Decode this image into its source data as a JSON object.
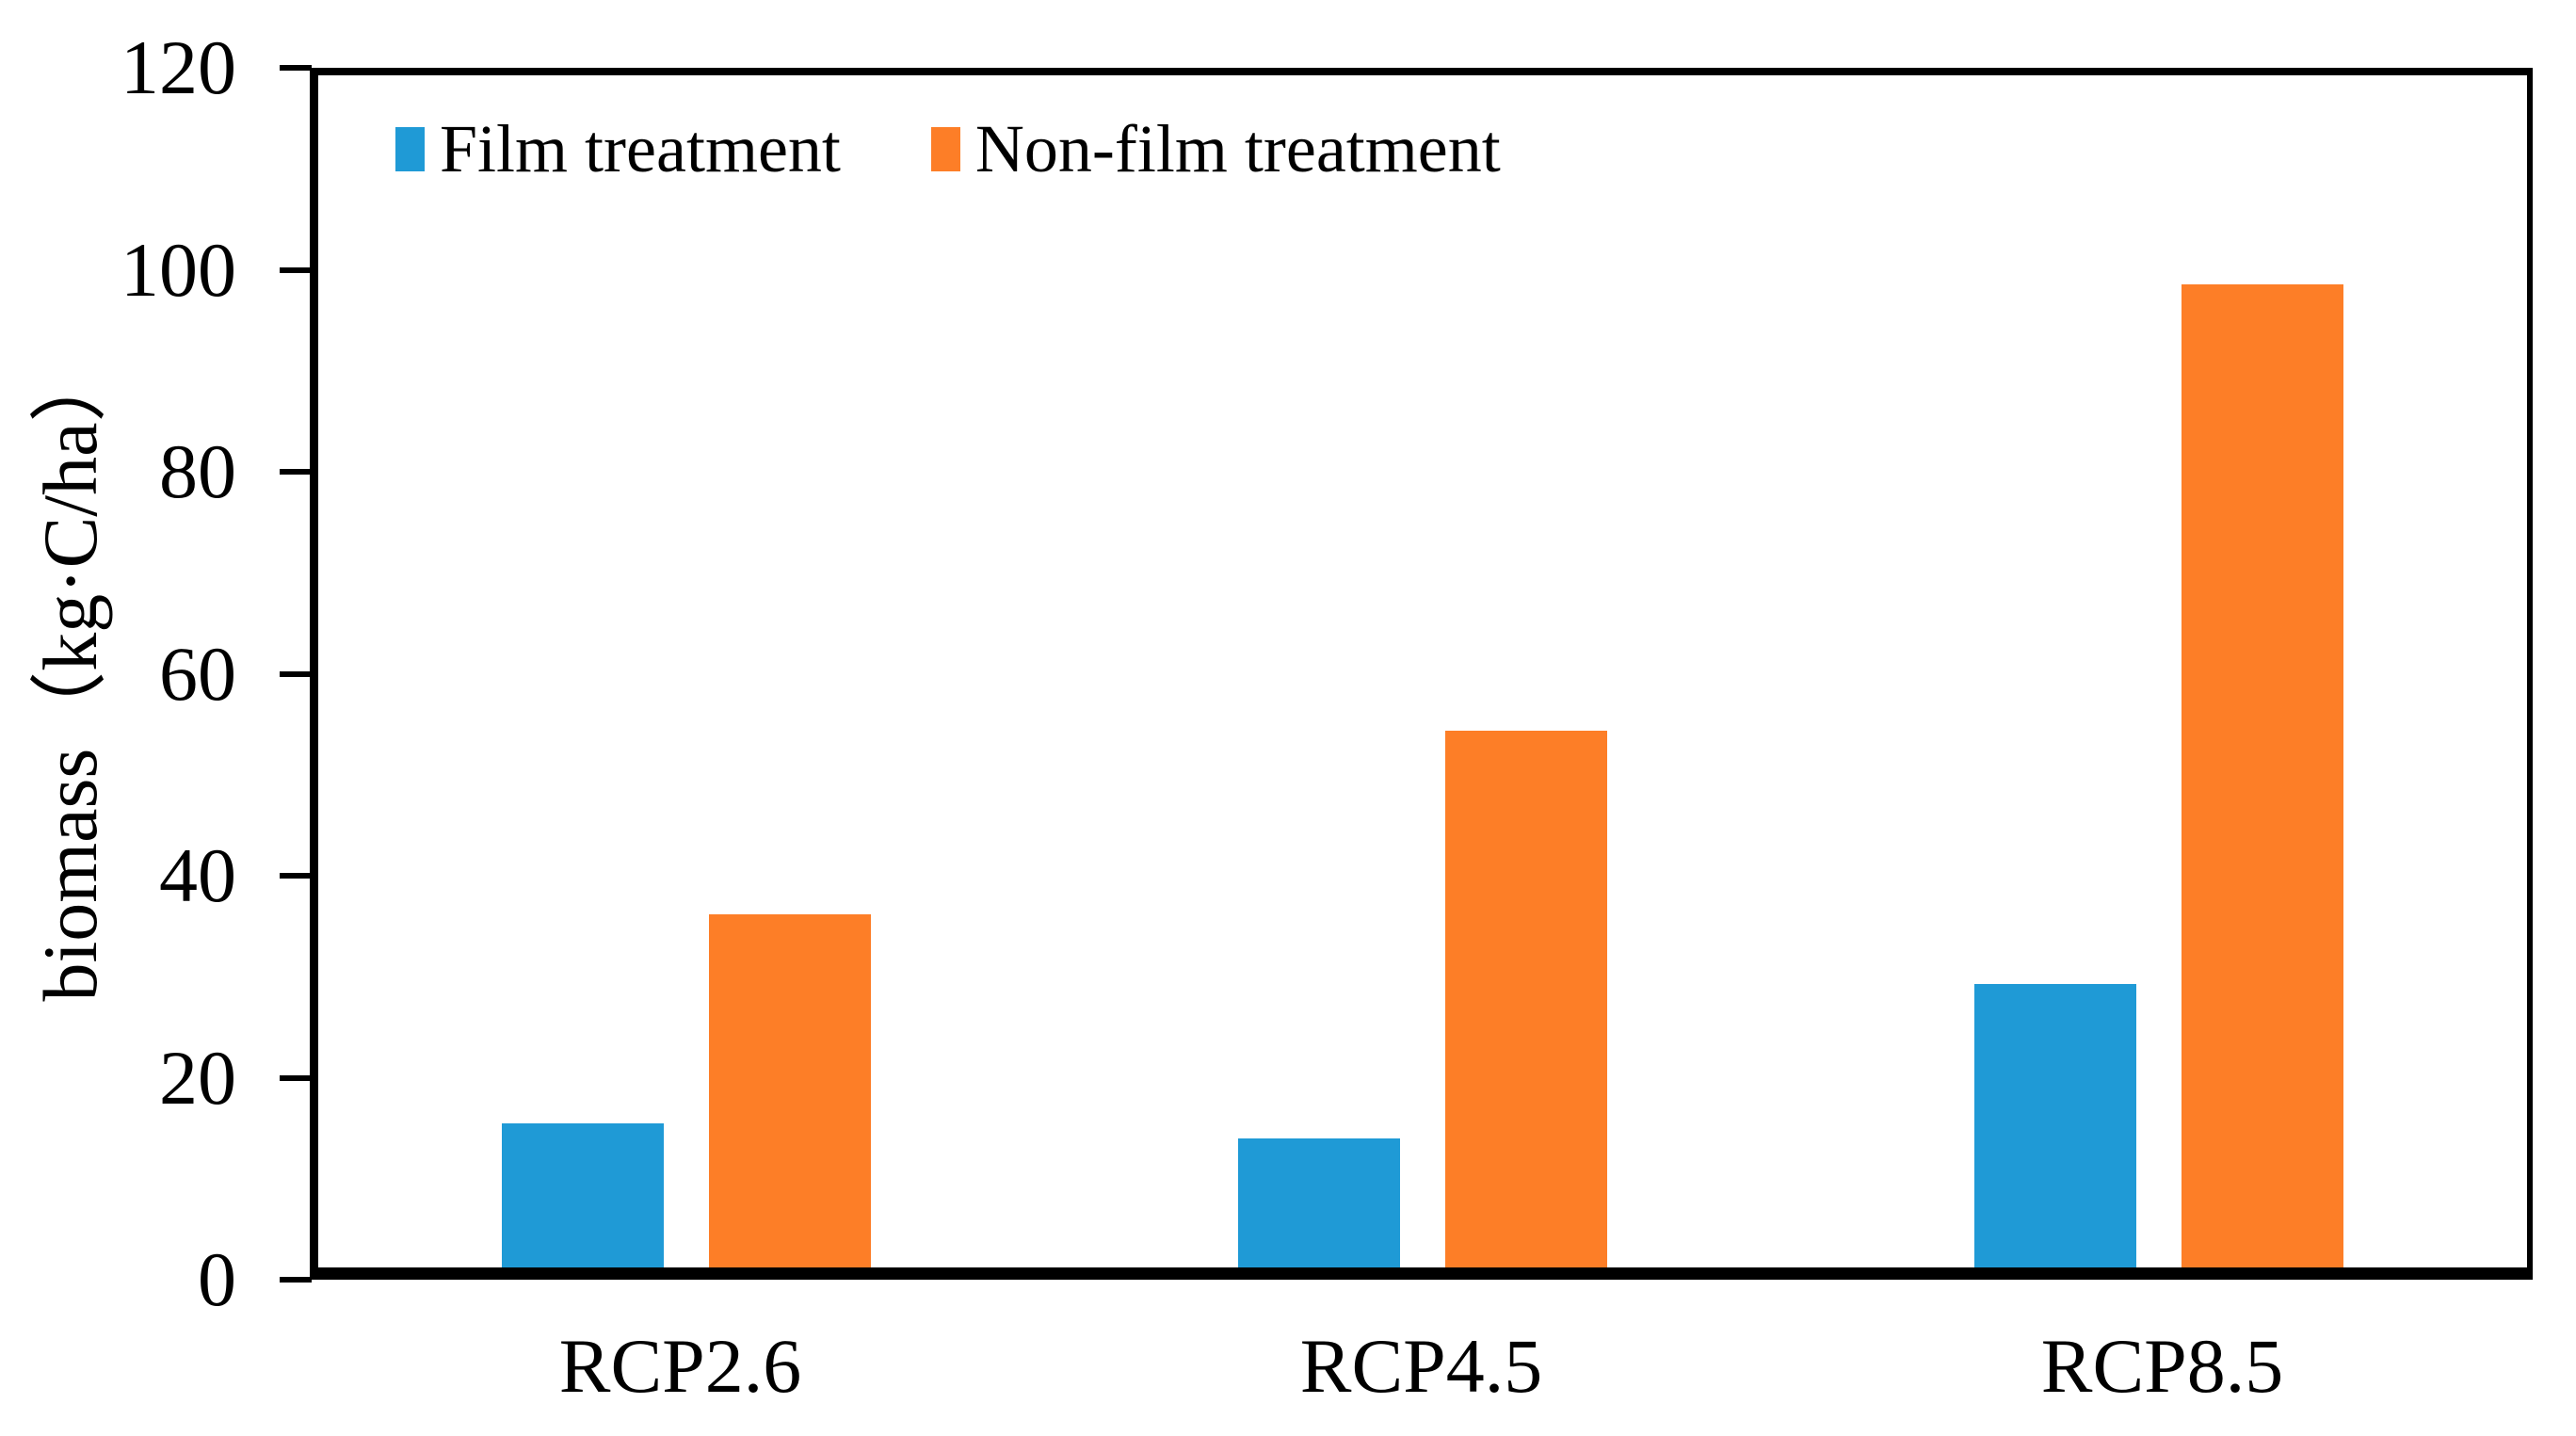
{
  "chart_data": {
    "type": "bar",
    "title": "",
    "categories": [
      "RCP2.6",
      "RCP4.5",
      "RCP8.5"
    ],
    "series": [
      {
        "name": "Film treatment",
        "color": "#1F9AD6",
        "values": [
          14.5,
          13,
          28.5
        ]
      },
      {
        "name": "Non-film treatment",
        "color": "#FD7E27",
        "values": [
          35.5,
          54,
          99
        ]
      }
    ],
    "xlabel": "",
    "ylabel": "biomass（kg·C/ha）",
    "ylim": [
      0,
      120
    ],
    "yticks": [
      0,
      20,
      40,
      60,
      80,
      100,
      120
    ],
    "grid": false,
    "legend_position": "top-left-inside",
    "axis_color": "#000000",
    "background": "#FFFFFF"
  }
}
